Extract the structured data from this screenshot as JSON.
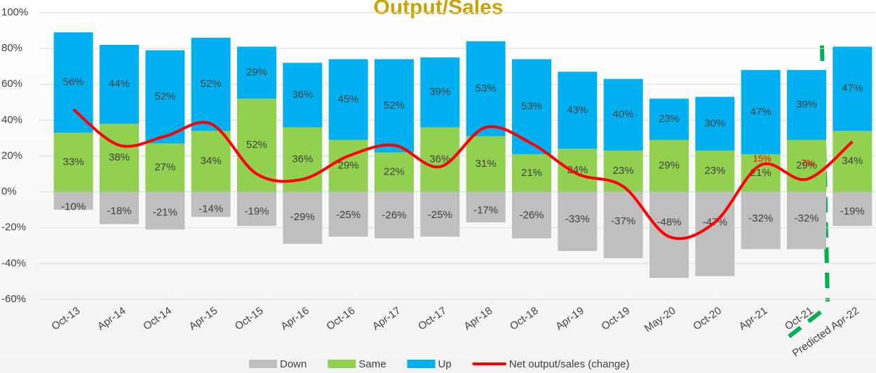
{
  "chart_data": {
    "type": "bar",
    "stacked": true,
    "title": "Output/Sales",
    "categories": [
      "Oct-13",
      "Apr-14",
      "Oct-14",
      "Apr-15",
      "Oct-15",
      "Apr-16",
      "Oct-16",
      "Apr-17",
      "Oct-17",
      "Apr-18",
      "Oct-18",
      "Apr-19",
      "Oct-19",
      "May-20",
      "Oct-20",
      "Apr-21",
      "Oct-21",
      "Predicted Apr-22"
    ],
    "series": [
      {
        "name": "Down",
        "color": "#bfbfbf",
        "values": [
          -10,
          -18,
          -21,
          -14,
          -19,
          -29,
          -25,
          -26,
          -25,
          -17,
          -26,
          -33,
          -37,
          -48,
          -47,
          -32,
          -32,
          -19
        ],
        "value_labels": [
          "-10%",
          "-18%",
          "-21%",
          "-14%",
          "-19%",
          "-29%",
          "-25%",
          "-26%",
          "-25%",
          "-17%",
          "-26%",
          "-33%",
          "-37%",
          "-48%",
          "-47%",
          "-32%",
          "-32%",
          "-19%"
        ]
      },
      {
        "name": "Same",
        "color": "#92d050",
        "values": [
          33,
          38,
          27,
          34,
          52,
          36,
          29,
          22,
          36,
          31,
          21,
          24,
          23,
          29,
          23,
          21,
          29,
          34
        ],
        "value_labels": [
          "33%",
          "38%",
          "27%",
          "34%",
          "52%",
          "36%",
          "29%",
          "22%",
          "36%",
          "31%",
          "21%",
          "24%",
          "23%",
          "29%",
          "23%",
          "21%",
          "29%",
          "34%"
        ]
      },
      {
        "name": "Up",
        "color": "#00b0f0",
        "values": [
          56,
          44,
          52,
          52,
          29,
          36,
          45,
          52,
          39,
          53,
          53,
          43,
          40,
          23,
          30,
          47,
          39,
          47
        ],
        "value_labels": [
          "56%",
          "44%",
          "52%",
          "52%",
          "29%",
          "36%",
          "45%",
          "52%",
          "39%",
          "53%",
          "53%",
          "43%",
          "40%",
          "23%",
          "30%",
          "47%",
          "39%",
          "47%"
        ]
      },
      {
        "name": "Net output/sales (change)",
        "color": "#ff0000",
        "kind": "line",
        "values": [
          46,
          26,
          31,
          38,
          10,
          7,
          20,
          26,
          14,
          36,
          27,
          10,
          3,
          -25,
          -17,
          15,
          7,
          28
        ],
        "value_labels": [
          null,
          null,
          null,
          null,
          null,
          null,
          null,
          null,
          null,
          null,
          null,
          null,
          null,
          null,
          null,
          "15%",
          "7%",
          null
        ]
      }
    ],
    "ylim": [
      -60,
      100
    ],
    "yticks": [
      {
        "value": -60,
        "label": "-60%"
      },
      {
        "value": -40,
        "label": "-40%"
      },
      {
        "value": -20,
        "label": "-20%"
      },
      {
        "value": 0,
        "label": "0%"
      },
      {
        "value": 20,
        "label": "20%"
      },
      {
        "value": 40,
        "label": "40%"
      },
      {
        "value": 60,
        "label": "60%"
      },
      {
        "value": 80,
        "label": "80%"
      },
      {
        "value": 100,
        "label": "100%"
      }
    ],
    "grid": true,
    "legend": "bottom"
  }
}
